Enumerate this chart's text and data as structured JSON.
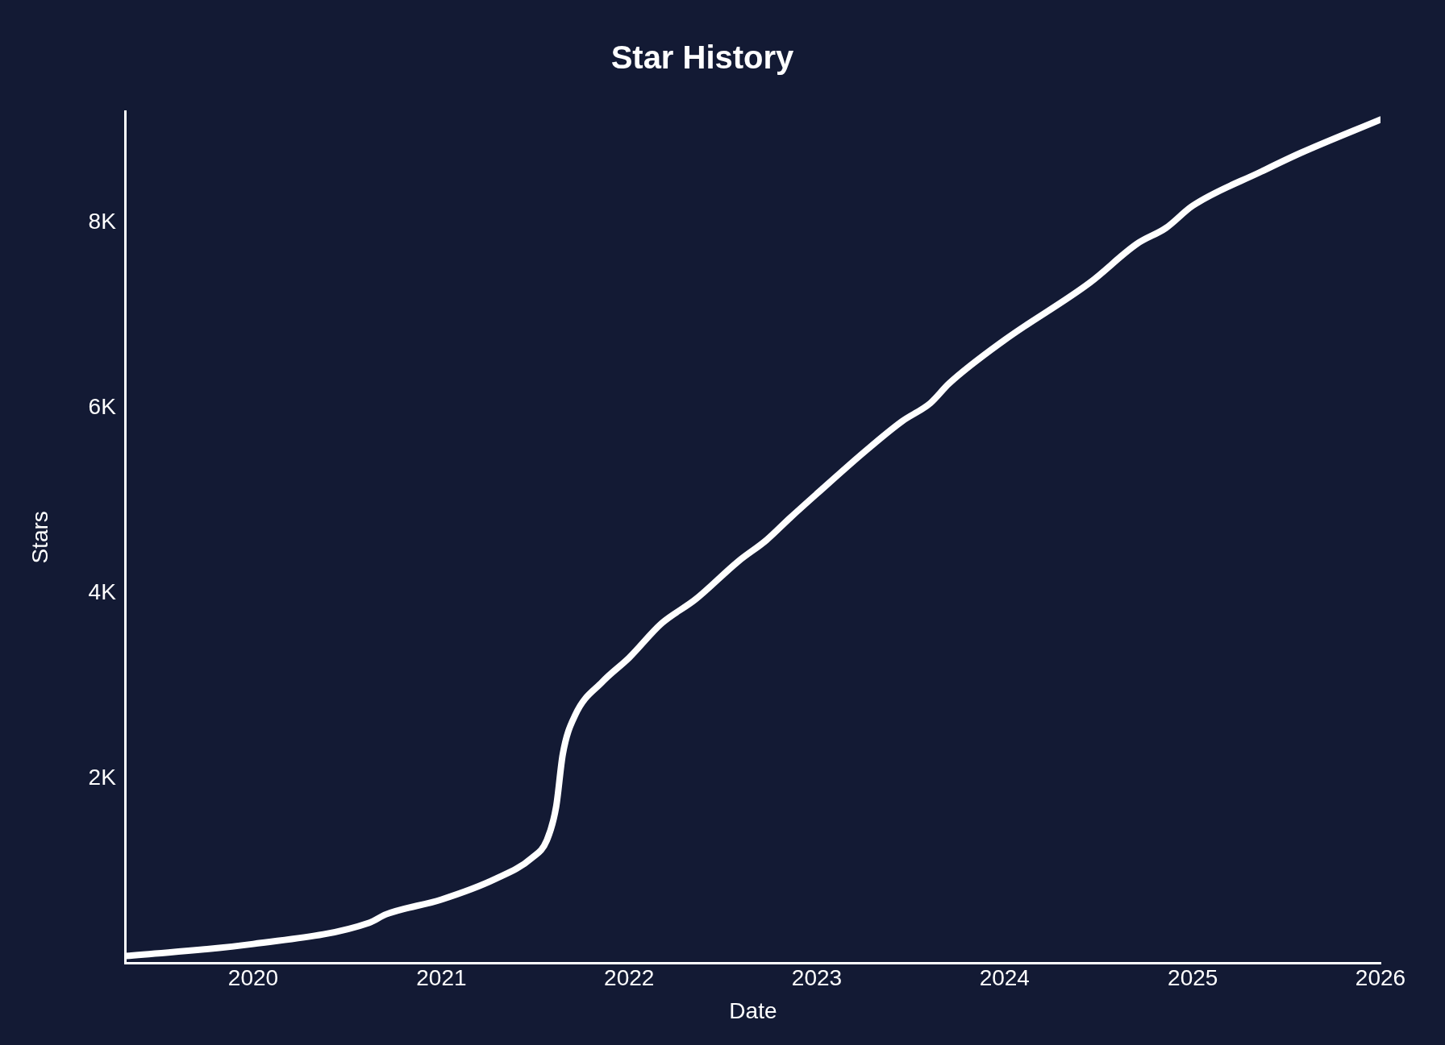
{
  "chart_data": {
    "type": "line",
    "title": "Star History",
    "xlabel": "Date",
    "ylabel": "Stars",
    "x": [
      "2019-04-28",
      "2020-01-01",
      "2020-08-14",
      "2020-09-15",
      "2021-01-01",
      "2021-04-15",
      "2021-06-26",
      "2021-07-25",
      "2021-08-12",
      "2021-08-25",
      "2021-09-18",
      "2021-11-10",
      "2022-01-01",
      "2022-03-05",
      "2022-05-10",
      "2022-08-01",
      "2022-09-25",
      "2022-11-10",
      "2023-01-01",
      "2023-04-05",
      "2023-06-15",
      "2023-08-10",
      "2023-09-15",
      "2024-01-01",
      "2024-06-15",
      "2024-09-15",
      "2024-11-10",
      "2025-01-01",
      "2025-05-15",
      "2025-07-30",
      "2026-01-01"
    ],
    "series": [
      {
        "color": "#ffffff",
        "values": [
          80,
          210,
          440,
          530,
          690,
          910,
          1140,
          1330,
          1690,
          2260,
          2680,
          3040,
          3300,
          3670,
          3930,
          4340,
          4570,
          4810,
          5070,
          5530,
          5850,
          6050,
          6260,
          6730,
          7350,
          7770,
          7940,
          8180,
          8550,
          8750,
          9110
        ]
      }
    ],
    "xlim": [
      "2019-04-28",
      "2026-01-01"
    ],
    "xticks": [
      {
        "value": "2020-01-01",
        "label": "2020"
      },
      {
        "value": "2021-01-01",
        "label": "2021"
      },
      {
        "value": "2022-01-01",
        "label": "2022"
      },
      {
        "value": "2023-01-01",
        "label": "2023"
      },
      {
        "value": "2024-01-01",
        "label": "2024"
      },
      {
        "value": "2025-01-01",
        "label": "2025"
      },
      {
        "value": "2026-01-01",
        "label": "2026"
      }
    ],
    "ylim": [
      0,
      9200
    ],
    "yticks": [
      {
        "value": 2000,
        "label": "2K"
      },
      {
        "value": 4000,
        "label": "4K"
      },
      {
        "value": 6000,
        "label": "6K"
      },
      {
        "value": 8000,
        "label": "8K"
      }
    ],
    "grid": false,
    "legend": false,
    "marker": "none",
    "line_style": "solid"
  }
}
